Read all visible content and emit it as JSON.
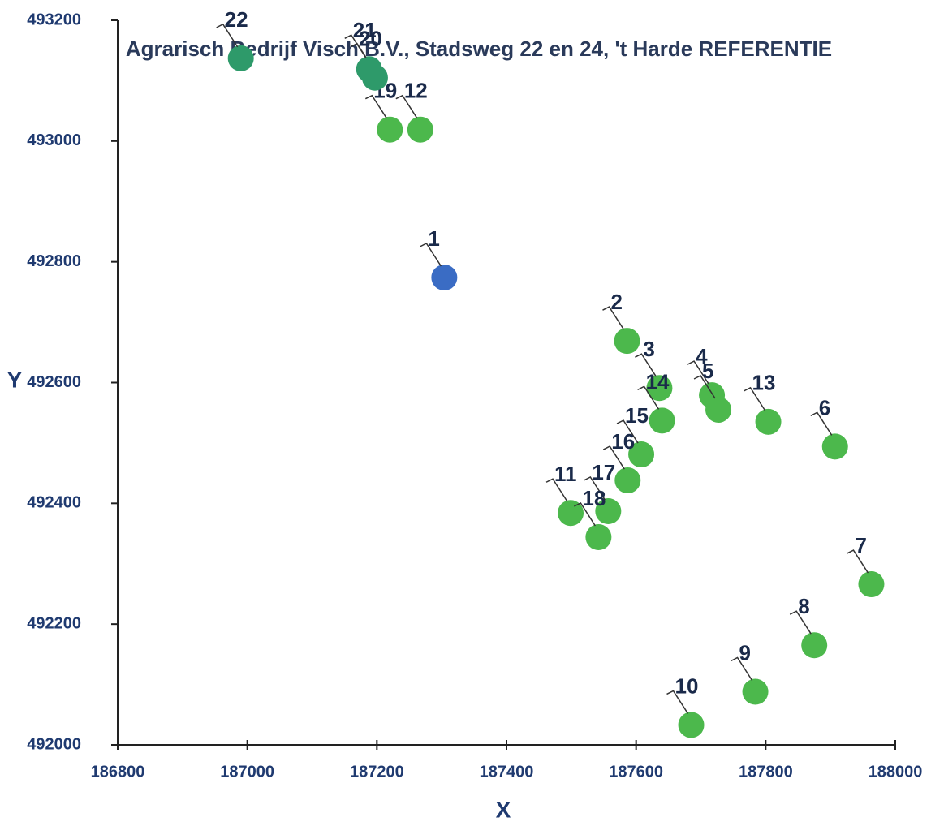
{
  "chart_data": {
    "type": "scatter",
    "title": "Agrarisch Bedrijf Visch B.V., Stadsweg 22 en 24, 't Harde REFERENTIE",
    "x_label": "X",
    "y_label": "Y",
    "labels": [
      "1",
      "2",
      "3",
      "4",
      "5",
      "6",
      "7",
      "8",
      "9",
      "10",
      "11",
      "12",
      "13",
      "14",
      "15",
      "16",
      "17",
      "18",
      "19",
      "20",
      "21",
      "22"
    ],
    "x": [
      187304,
      187586,
      187636,
      187717,
      187727,
      187907,
      187963,
      187875,
      187784,
      187685,
      187499,
      187267,
      187804,
      187640,
      187608,
      187587,
      187557,
      187542,
      187220,
      187197,
      187188,
      186990
    ],
    "y": [
      492774,
      492669,
      492591,
      492579,
      492555,
      492494,
      492266,
      492165,
      492088,
      492033,
      492384,
      493019,
      492535,
      492537,
      492481,
      492438,
      492387,
      492344,
      493019,
      493105,
      493119,
      493137
    ],
    "colors": [
      "#3a6cc4",
      "#4cb84c",
      "#4cb84c",
      "#4cb84c",
      "#4cb84c",
      "#4cb84c",
      "#4cb84c",
      "#4cb84c",
      "#4cb84c",
      "#4cb84c",
      "#4cb84c",
      "#4cb84c",
      "#4cb84c",
      "#4cb84c",
      "#4cb84c",
      "#4cb84c",
      "#4cb84c",
      "#4cb84c",
      "#4cb84c",
      "#2e9a6a",
      "#2e9a6a",
      "#2e9a6a"
    ],
    "xlim": [
      186800,
      188000
    ],
    "xticks": [
      186800,
      187000,
      187200,
      187400,
      187600,
      187800,
      188000
    ],
    "ylim": [
      492000,
      493200
    ],
    "yticks": [
      492000,
      492200,
      492400,
      492600,
      492800,
      493000,
      493200
    ]
  }
}
